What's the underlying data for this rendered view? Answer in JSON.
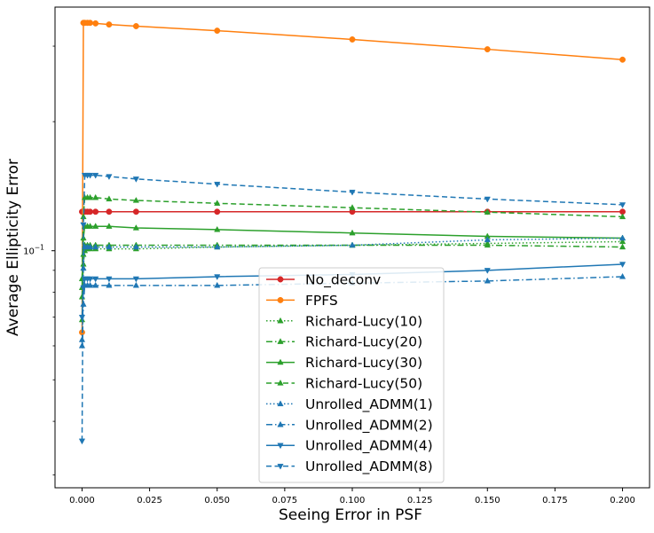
{
  "chart_data": {
    "type": "line",
    "title": "",
    "xlabel": "Seeing Error in PSF",
    "ylabel": "Average Ellipticity Error",
    "xlim": [
      -0.01,
      0.21
    ],
    "ylim": [
      0.028,
      0.37
    ],
    "yscale": "log",
    "grid": false,
    "legend_position": "lower-center",
    "x": [
      0,
      0.0005,
      0.001,
      0.002,
      0.003,
      0.005,
      0.01,
      0.02,
      0.05,
      0.1,
      0.15,
      0.2
    ],
    "x_tick_labels": [
      "0.000",
      "0.025",
      "0.050",
      "0.075",
      "0.100",
      "0.125",
      "0.150",
      "0.175",
      "0.200"
    ],
    "x_tick_values": [
      0,
      0.025,
      0.05,
      0.075,
      0.1,
      0.125,
      0.15,
      0.175,
      0.2
    ],
    "y_tick_labels": [
      {
        "base": "10",
        "exp": "−1",
        "value": 0.1
      }
    ],
    "y_minor_ticks": [
      0.03,
      0.04,
      0.05,
      0.06,
      0.07,
      0.08,
      0.09,
      0.2,
      0.3
    ],
    "series": [
      {
        "name": "No_deconv",
        "color": "#d62728",
        "dash": "solid",
        "marker": "o",
        "values": [
          0.1233,
          0.1233,
          0.1233,
          0.1233,
          0.1233,
          0.1233,
          0.1233,
          0.1233,
          0.1233,
          0.1233,
          0.1233,
          0.1233
        ]
      },
      {
        "name": "FPFS",
        "color": "#ff7f0e",
        "dash": "solid",
        "marker": "o",
        "values": [
          0.0645,
          0.34,
          0.34,
          0.34,
          0.34,
          0.339,
          0.337,
          0.334,
          0.326,
          0.311,
          0.295,
          0.279
        ]
      },
      {
        "name": "Richard-Lucy(10)",
        "color": "#2ca02c",
        "dash": "dotted",
        "marker": "^",
        "values": [
          0.069,
          0.093,
          0.1,
          0.101,
          0.101,
          0.101,
          0.101,
          0.101,
          0.102,
          0.103,
          0.104,
          0.105
        ]
      },
      {
        "name": "Richard-Lucy(20)",
        "color": "#2ca02c",
        "dash": "dashdot",
        "marker": "^",
        "values": [
          0.078,
          0.098,
          0.103,
          0.103,
          0.103,
          0.103,
          0.103,
          0.103,
          0.103,
          0.103,
          0.103,
          0.102
        ]
      },
      {
        "name": "Richard-Lucy(30)",
        "color": "#2ca02c",
        "dash": "solid",
        "marker": "^",
        "values": [
          0.082,
          0.107,
          0.114,
          0.114,
          0.114,
          0.114,
          0.114,
          0.113,
          0.112,
          0.11,
          0.108,
          0.107
        ]
      },
      {
        "name": "Richard-Lucy(50)",
        "color": "#2ca02c",
        "dash": "dashed",
        "marker": "^",
        "values": [
          0.086,
          0.12,
          0.133,
          0.133,
          0.133,
          0.133,
          0.132,
          0.131,
          0.129,
          0.126,
          0.123,
          0.12
        ]
      },
      {
        "name": "Unrolled_ADMM(1)",
        "color": "#1f77b4",
        "dash": "dotted",
        "marker": "^",
        "values": [
          0.062,
          0.091,
          0.102,
          0.102,
          0.102,
          0.102,
          0.102,
          0.102,
          0.102,
          0.103,
          0.106,
          0.107
        ]
      },
      {
        "name": "Unrolled_ADMM(2)",
        "color": "#1f77b4",
        "dash": "dashdot",
        "marker": "^",
        "values": [
          0.06,
          0.075,
          0.083,
          0.083,
          0.083,
          0.083,
          0.083,
          0.083,
          0.083,
          0.084,
          0.085,
          0.087
        ]
      },
      {
        "name": "Unrolled_ADMM(4)",
        "color": "#1f77b4",
        "dash": "solid",
        "marker": "v",
        "values": [
          0.07,
          0.082,
          0.086,
          0.086,
          0.086,
          0.086,
          0.086,
          0.086,
          0.087,
          0.088,
          0.09,
          0.093
        ]
      },
      {
        "name": "Unrolled_ADMM(8)",
        "color": "#1f77b4",
        "dash": "dashed",
        "marker": "v",
        "values": [
          0.036,
          0.115,
          0.15,
          0.15,
          0.15,
          0.15,
          0.149,
          0.147,
          0.143,
          0.137,
          0.132,
          0.128
        ]
      }
    ]
  }
}
